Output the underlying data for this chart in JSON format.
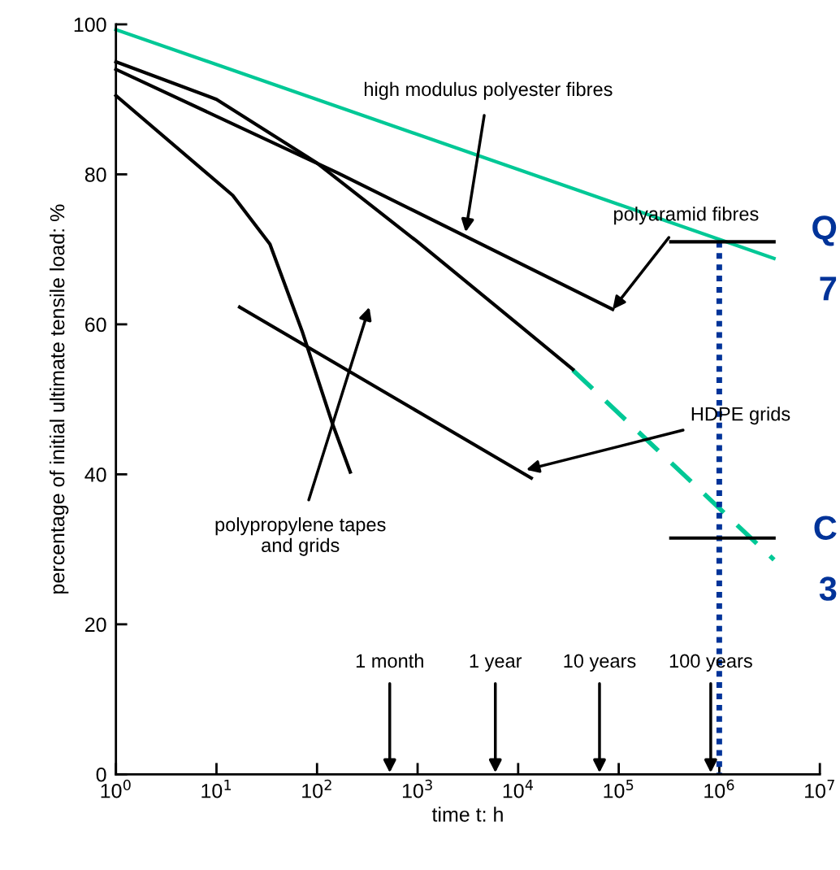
{
  "chart_data": {
    "type": "line",
    "xlabel": "time t: h",
    "ylabel": "percentage of initial ultimate tensile load: %",
    "log": "x",
    "xlim": [
      1,
      10000000
    ],
    "xticks": [
      {
        "value": 1,
        "label": "10$^{0}$"
      },
      {
        "value": 10,
        "label": "10$^{1}$"
      },
      {
        "value": 100,
        "label": "10$^{2}$"
      },
      {
        "value": 1000,
        "label": "10$^{3}$"
      },
      {
        "value": 10000,
        "label": "10$^{4}$"
      },
      {
        "value": 100000,
        "label": "10$^{5}$"
      },
      {
        "value": 1000000,
        "label": "10$^{6}$"
      },
      {
        "value": 10000000,
        "label": "10$^{7}$"
      }
    ],
    "ylim": [
      0,
      100
    ],
    "yticks": [
      0,
      20,
      40,
      60,
      80,
      100
    ],
    "series": [
      {
        "color": "#00c896",
        "line_style": "solid",
        "x": [
          1,
          3500000
        ],
        "values": [
          99.3,
          68.8
        ]
      },
      {
        "color": "#00c896",
        "line_style": "dashed",
        "x": [
          35000,
          3500000
        ],
        "values": [
          53.9,
          28.6
        ]
      },
      {
        "color": "#000000",
        "line_style": "solid",
        "x": [
          1,
          160,
          87000
        ],
        "values": [
          94,
          80.2,
          62
        ]
      },
      {
        "color": "#000000",
        "line_style": "solid",
        "x": [
          1,
          10,
          100,
          1000,
          10000,
          35000
        ],
        "values": [
          95,
          90,
          81.5,
          71,
          60,
          54
        ]
      },
      {
        "color": "#000000",
        "line_style": "solid",
        "x": [
          1,
          14.5,
          34,
          71,
          141,
          214
        ],
        "values": [
          90.5,
          77.2,
          70.7,
          59.1,
          46.9,
          40.3
        ]
      },
      {
        "color": "#000000",
        "line_style": "solid",
        "x": [
          17,
          13500
        ],
        "values": [
          62.3,
          39.5
        ]
      },
      {
        "color": "#003399",
        "line_style": "dotted",
        "x": [
          1000000,
          1000000
        ],
        "values": [
          71,
          0
        ]
      },
      {
        "color": "#000000",
        "line_style": "solid",
        "x": [
          330000,
          3500000
        ],
        "values": [
          71,
          71
        ]
      },
      {
        "color": "#000000",
        "line_style": "solid",
        "x": [
          330000,
          3500000
        ],
        "values": [
          31.5,
          31.5
        ]
      }
    ],
    "annotations": [
      {
        "text": "high modulus polyester fibres",
        "x": 3000,
        "y": 72.3
      },
      {
        "text": "polyaramid fibres",
        "x": 87000,
        "y": 62
      },
      {
        "text": "HDPE grids",
        "x": 12000,
        "y": 40.6
      },
      "polypropylene tapes\nand grids",
      "1 month",
      "1 year",
      "10 years",
      "100 years",
      "Q",
      "7",
      "C",
      "3"
    ]
  }
}
